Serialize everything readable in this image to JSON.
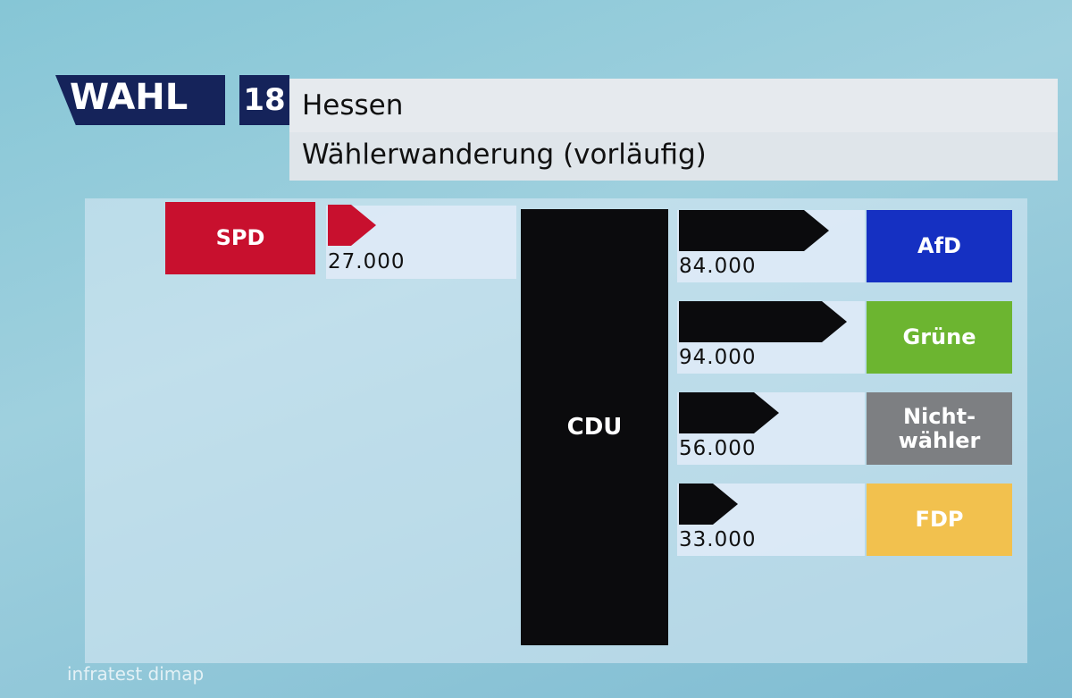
{
  "chart_data": {
    "type": "migration",
    "brand": "WAHL",
    "brand_number": "18",
    "title": "Hessen",
    "subtitle": "Wählerwanderung (vorläufig)",
    "center": "CDU",
    "center_color": "#0b0b0d",
    "inflows": {
      "categories": [
        "SPD"
      ],
      "values": [
        27000
      ],
      "value_labels": [
        "27.000"
      ],
      "colors": [
        "#c8102e"
      ],
      "arrow_color": "#c8102e"
    },
    "outflows": {
      "categories": [
        "AfD",
        "Grüne",
        "Nicht-wähler",
        "FDP"
      ],
      "values": [
        84000,
        94000,
        56000,
        33000
      ],
      "value_labels": [
        "84.000",
        "94.000",
        "56.000",
        "33.000"
      ],
      "colors": [
        "#1530c2",
        "#6cb530",
        "#7d7f82",
        "#f2c14e"
      ],
      "arrow_color": "#0b0b0d"
    },
    "source": "infratest dimap"
  }
}
